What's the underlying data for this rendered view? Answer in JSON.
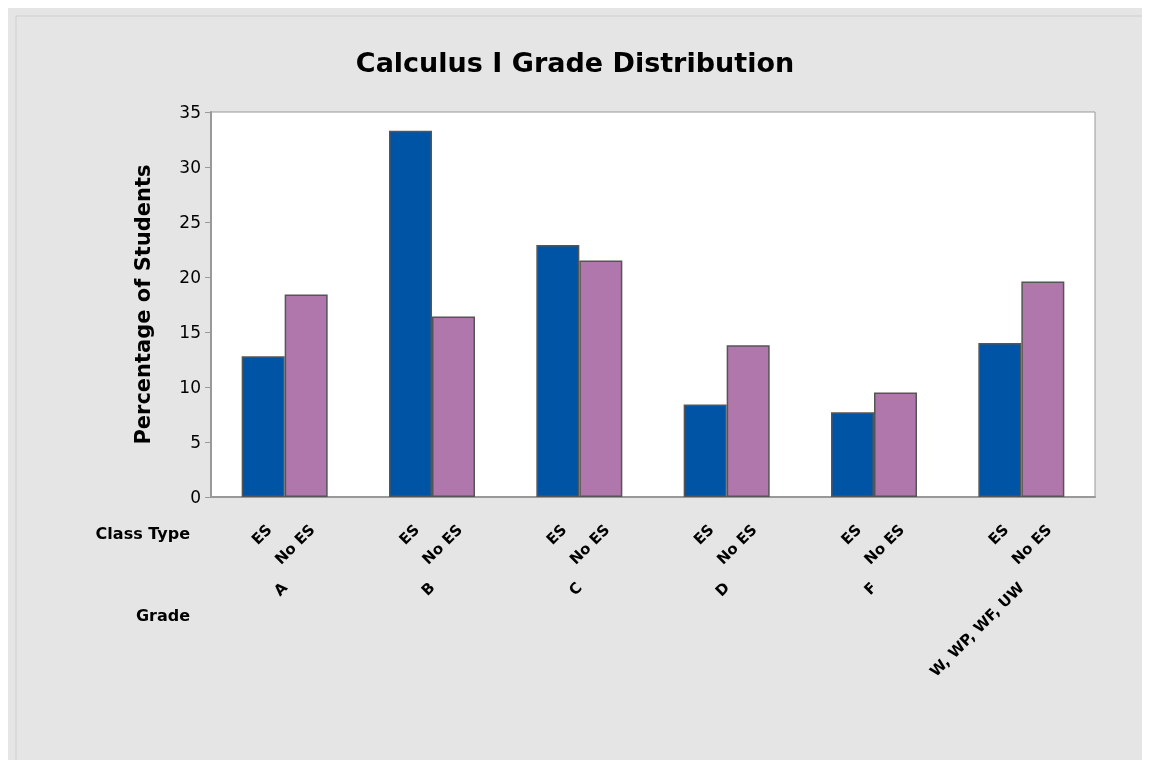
{
  "chart_data": {
    "type": "bar",
    "title": "Calculus I Grade Distribution",
    "ylabel": "Percentage of Students",
    "categories": [
      "A",
      "B",
      "C",
      "D",
      "F",
      "W, WP, WF, UW"
    ],
    "series": [
      {
        "name": "ES",
        "color": "#0054a6",
        "values": [
          12.8,
          33.3,
          22.9,
          8.4,
          7.7,
          14.0
        ]
      },
      {
        "name": "No ES",
        "color": "#b077ac",
        "values": [
          18.4,
          16.4,
          21.5,
          13.8,
          9.5,
          19.6
        ]
      }
    ],
    "ylim": [
      0,
      35
    ],
    "yticks": [
      0,
      5,
      10,
      15,
      20,
      25,
      30,
      35
    ],
    "grid": false,
    "legend": false,
    "annotations": [
      "Class Type",
      "Grade"
    ]
  }
}
